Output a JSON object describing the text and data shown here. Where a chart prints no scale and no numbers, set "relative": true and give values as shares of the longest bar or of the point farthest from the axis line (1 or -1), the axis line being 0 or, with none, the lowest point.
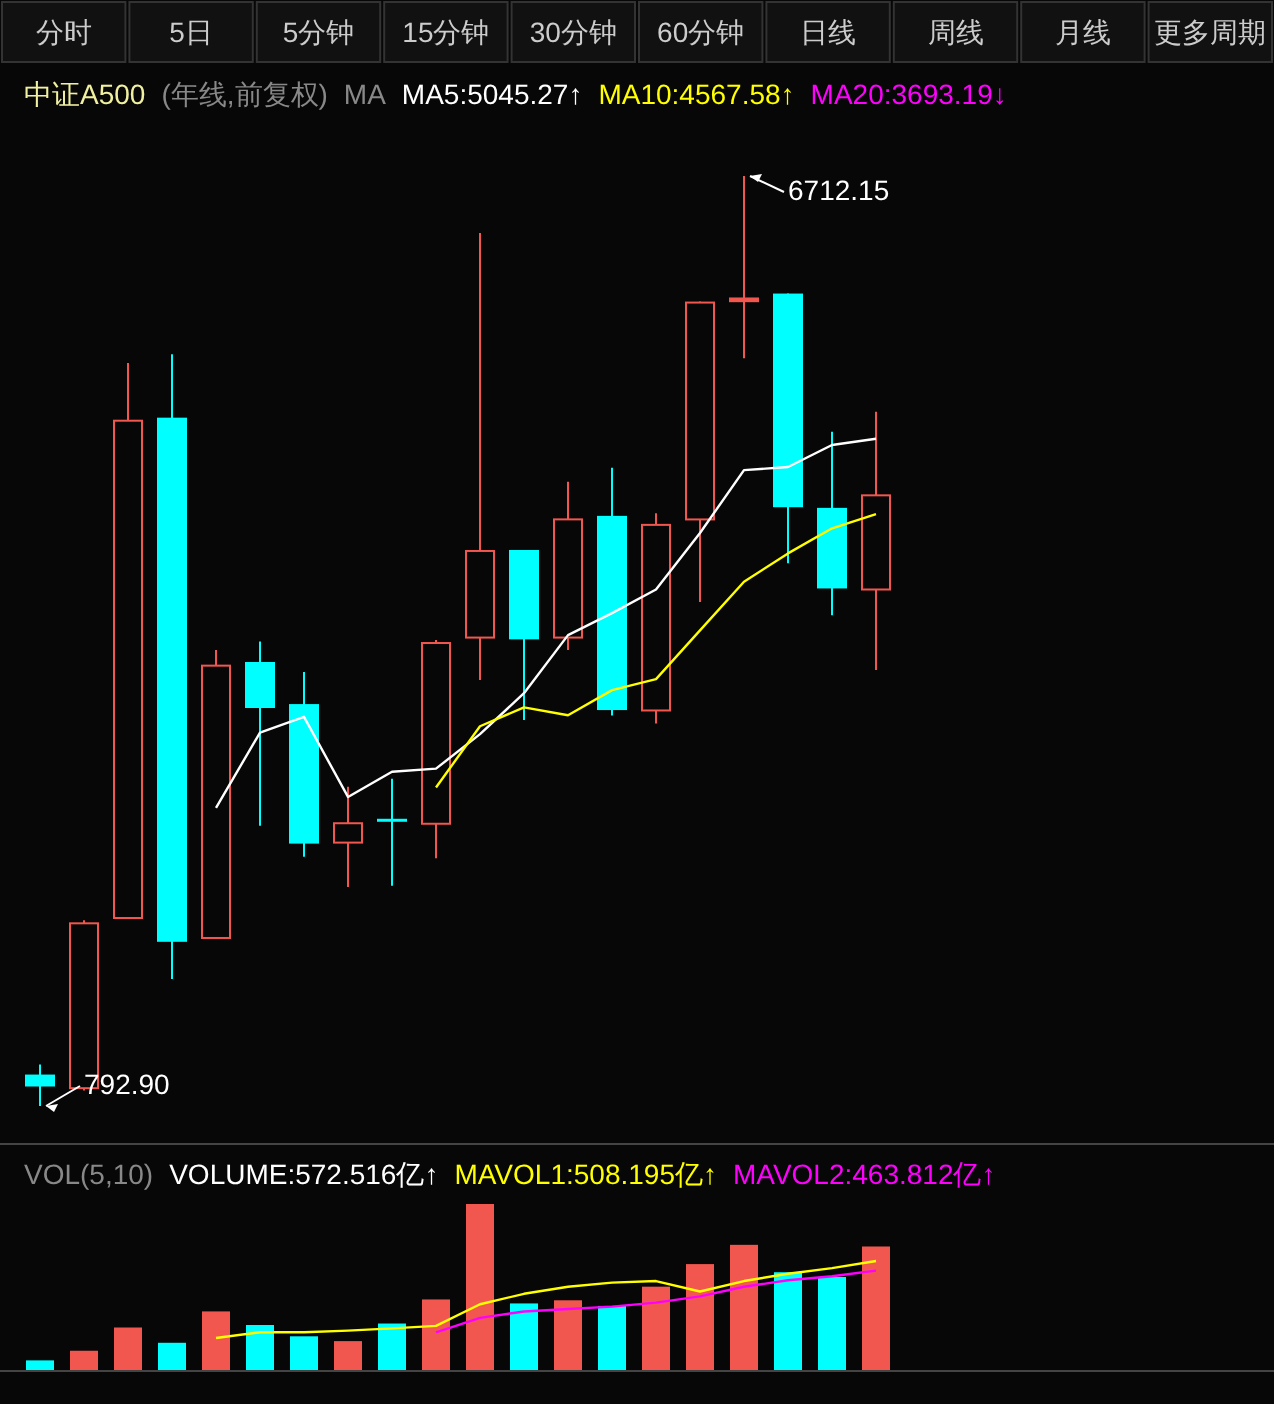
{
  "chart_data": [
    {
      "type": "other",
      "annotations": [
        "分时",
        "5日",
        "5分钟",
        "15分钟",
        "30分钟",
        "60分钟",
        "日线",
        "周线",
        "月线",
        "更多周期"
      ]
    },
    {
      "type": "candlestick",
      "title": "中证A500",
      "subtitle": "(年线,前复权)",
      "legend_title": "MA",
      "categories": [
        null,
        null,
        null,
        null,
        null,
        null,
        null,
        null,
        null,
        null,
        null,
        null,
        null,
        null,
        null,
        null,
        null,
        null,
        null,
        null
      ],
      "ohlc": [
        [
          993,
          1057,
          792.9,
          917
        ],
        [
          900,
          1975,
          891,
          1962
        ],
        [
          1983,
          5522,
          1983,
          5161
        ],
        [
          5174,
          5578,
          1601,
          1838
        ],
        [
          1856,
          3695,
          1856,
          3602
        ],
        [
          3619,
          3750,
          2577,
          3326
        ],
        [
          3351,
          3555,
          2379,
          2463
        ],
        [
          2463,
          2825,
          2187,
          2599
        ],
        [
          2621,
          2876,
          2195,
          2608
        ],
        [
          2583,
          3759,
          2370,
          3746
        ],
        [
          3768,
          6350,
          3504,
          4332
        ],
        [
          4332,
          4332,
          3249,
          3763
        ],
        [
          3768,
          4766,
          3695,
          4533
        ],
        [
          4549,
          4855,
          3278,
          3313
        ],
        [
          3304,
          4566,
          3227,
          4498
        ],
        [
          4520,
          5913,
          4001,
          5913
        ],
        [
          5909,
          6712.15,
          5552,
          5939
        ],
        [
          5964,
          5964,
          4247,
          4604
        ],
        [
          4600,
          5085,
          3916,
          4087
        ],
        [
          4074,
          5212,
          3568,
          4686
        ]
      ],
      "colors": [
        "#00ffff",
        "#f2574f",
        "#f2574f",
        "#00ffff",
        "#f2574f",
        "#00ffff",
        "#00ffff",
        "#f2574f",
        "#00ffff",
        "#f2574f",
        "#f2574f",
        "#00ffff",
        "#f2574f",
        "#00ffff",
        "#f2574f",
        "#f2574f",
        "#f2574f",
        "#00ffff",
        "#00ffff",
        "#f2574f"
      ],
      "series": [
        {
          "type": "line",
          "name": "MA5:5045.27↑",
          "color": "#ffffff",
          "values": [
            null,
            null,
            null,
            null,
            2690,
            3170,
            3270,
            2760,
            2920,
            2940,
            3160,
            3420,
            3790,
            3930,
            4080,
            4440,
            4840,
            4860,
            5000,
            5040
          ]
        },
        {
          "type": "line",
          "name": "MA10:4567.58↑",
          "color": "#ffff00",
          "values": [
            null,
            null,
            null,
            null,
            null,
            null,
            null,
            null,
            null,
            2820,
            3210,
            3330,
            3280,
            3440,
            3510,
            3820,
            4130,
            4310,
            4470,
            4560
          ]
        }
      ],
      "annotations": [
        "MA20:3693.19↓",
        "6712.15",
        "792.90"
      ]
    },
    {
      "type": "bar",
      "title": "VOL(5,10)",
      "relative": true,
      "categories": [
        null,
        null,
        null,
        null,
        null,
        null,
        null,
        null,
        null,
        null,
        null,
        null,
        null,
        null,
        null,
        null,
        null,
        null,
        null,
        null
      ],
      "values": [
        0.058,
        0.116,
        0.256,
        0.164,
        0.353,
        0.271,
        0.203,
        0.174,
        0.28,
        0.425,
        1,
        0.401,
        0.42,
        0.386,
        0.502,
        0.638,
        0.754,
        0.589,
        0.56,
        0.744
      ],
      "colors": [
        "#00ffff",
        "#f2574f",
        "#f2574f",
        "#00ffff",
        "#f2574f",
        "#00ffff",
        "#00ffff",
        "#f2574f",
        "#00ffff",
        "#f2574f",
        "#f2574f",
        "#00ffff",
        "#f2574f",
        "#00ffff",
        "#f2574f",
        "#f2574f",
        "#f2574f",
        "#00ffff",
        "#00ffff",
        "#f2574f"
      ],
      "annotations": [
        "VOLUME:572.516亿↑"
      ]
    },
    {
      "type": "line",
      "relative": true,
      "categories": [
        null,
        null,
        null,
        null,
        null,
        null,
        null,
        null,
        null,
        null,
        null,
        null,
        null,
        null,
        null,
        null,
        null,
        null,
        null,
        null
      ],
      "series": [
        {
          "name": "MAVOL1:508.195亿↑",
          "color": "#ffff00",
          "values": [
            null,
            null,
            null,
            null,
            0.294,
            0.346,
            0.346,
            0.361,
            0.382,
            0.405,
            0.603,
            0.699,
            0.764,
            0.802,
            0.816,
            0.72,
            0.816,
            0.883,
            0.935,
            1
          ]
        },
        {
          "name": "MAVOL2:463.812亿↑",
          "color": "#ff00ff",
          "values": [
            null,
            null,
            null,
            null,
            null,
            null,
            null,
            null,
            null,
            0.346,
            0.478,
            0.537,
            0.559,
            0.581,
            0.618,
            0.676,
            0.764,
            0.823,
            0.86,
            0.912
          ]
        }
      ]
    }
  ]
}
